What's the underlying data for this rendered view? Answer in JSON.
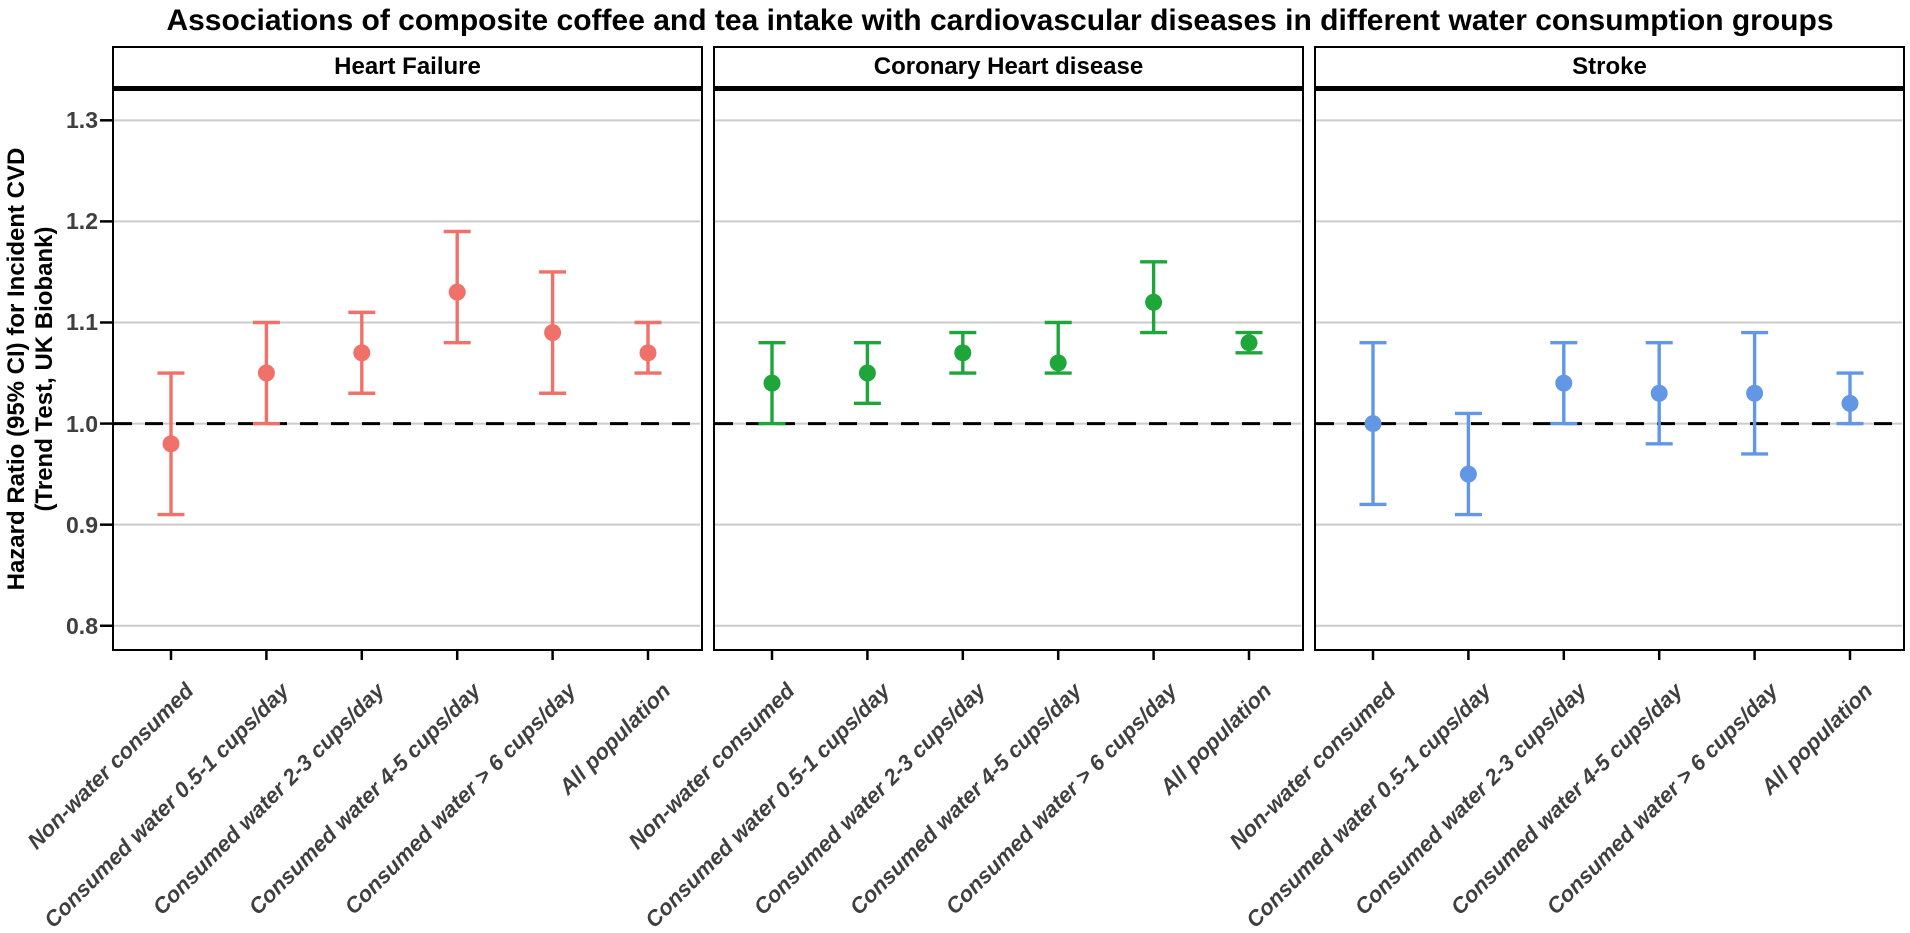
{
  "title": "Associations of composite coffee and tea intake with cardiovascular diseases in different water consumption groups",
  "y_axis": {
    "title_line1": "Hazard Ratio (95% CI) for Incident CVD",
    "title_line2": "(Trend Test, UK Biobank)",
    "tick_labels": [
      "1.3",
      "1.2",
      "1.1",
      "1.0",
      "0.9",
      "0.8"
    ],
    "tick_values": [
      1.3,
      1.2,
      1.1,
      1.0,
      0.9,
      0.8
    ]
  },
  "categories": [
    "Non-water consumed",
    "Consumed water 0.5-1 cups/day",
    "Consumed water 2-3 cups/day",
    "Consumed water 4-5 cups/day",
    "Consumed water > 6 cups/day",
    "All population"
  ],
  "colors": {
    "heart_failure": "#F0716A",
    "coronary_heart_disease": "#1EA63B",
    "stroke": "#6297E6",
    "grid": "#CBCBCB",
    "axis_text": "#3F3F3F",
    "reference_line": "#000000",
    "panel_border": "#000000",
    "strip_background": "#FFFFFF"
  },
  "chart_data": {
    "type": "scatter",
    "subtype": "forest-errorbar",
    "ylim": [
      0.777,
      1.329
    ],
    "reference_line": 1.0,
    "grid": true,
    "x_shared_categories": true,
    "panels": [
      {
        "label": "Heart Failure",
        "color": "#F0716A",
        "points": [
          {
            "category": "Non-water consumed",
            "hr": 0.98,
            "lo": 0.91,
            "hi": 1.05
          },
          {
            "category": "Consumed water 0.5-1 cups/day",
            "hr": 1.05,
            "lo": 1.0,
            "hi": 1.1
          },
          {
            "category": "Consumed water 2-3 cups/day",
            "hr": 1.07,
            "lo": 1.03,
            "hi": 1.11
          },
          {
            "category": "Consumed water 4-5 cups/day",
            "hr": 1.13,
            "lo": 1.08,
            "hi": 1.19
          },
          {
            "category": "Consumed water > 6 cups/day",
            "hr": 1.09,
            "lo": 1.03,
            "hi": 1.15
          },
          {
            "category": "All population",
            "hr": 1.07,
            "lo": 1.05,
            "hi": 1.1
          }
        ]
      },
      {
        "label": "Coronary Heart disease",
        "color": "#1EA63B",
        "points": [
          {
            "category": "Non-water consumed",
            "hr": 1.04,
            "lo": 1.0,
            "hi": 1.08
          },
          {
            "category": "Consumed water 0.5-1 cups/day",
            "hr": 1.05,
            "lo": 1.02,
            "hi": 1.08
          },
          {
            "category": "Consumed water 2-3 cups/day",
            "hr": 1.07,
            "lo": 1.05,
            "hi": 1.09
          },
          {
            "category": "Consumed water 4-5 cups/day",
            "hr": 1.06,
            "lo": 1.05,
            "hi": 1.1
          },
          {
            "category": "Consumed water > 6 cups/day",
            "hr": 1.12,
            "lo": 1.09,
            "hi": 1.16
          },
          {
            "category": "All population",
            "hr": 1.08,
            "lo": 1.07,
            "hi": 1.09
          }
        ]
      },
      {
        "label": "Stroke",
        "color": "#6297E6",
        "points": [
          {
            "category": "Non-water consumed",
            "hr": 1.0,
            "lo": 0.92,
            "hi": 1.08
          },
          {
            "category": "Consumed water 0.5-1 cups/day",
            "hr": 0.95,
            "lo": 0.91,
            "hi": 1.01
          },
          {
            "category": "Consumed water 2-3 cups/day",
            "hr": 1.04,
            "lo": 1.0,
            "hi": 1.08
          },
          {
            "category": "Consumed water 4-5 cups/day",
            "hr": 1.03,
            "lo": 0.98,
            "hi": 1.08
          },
          {
            "category": "Consumed water > 6 cups/day",
            "hr": 1.03,
            "lo": 0.97,
            "hi": 1.09
          },
          {
            "category": "All population",
            "hr": 1.02,
            "lo": 1.0,
            "hi": 1.05
          }
        ]
      }
    ]
  }
}
